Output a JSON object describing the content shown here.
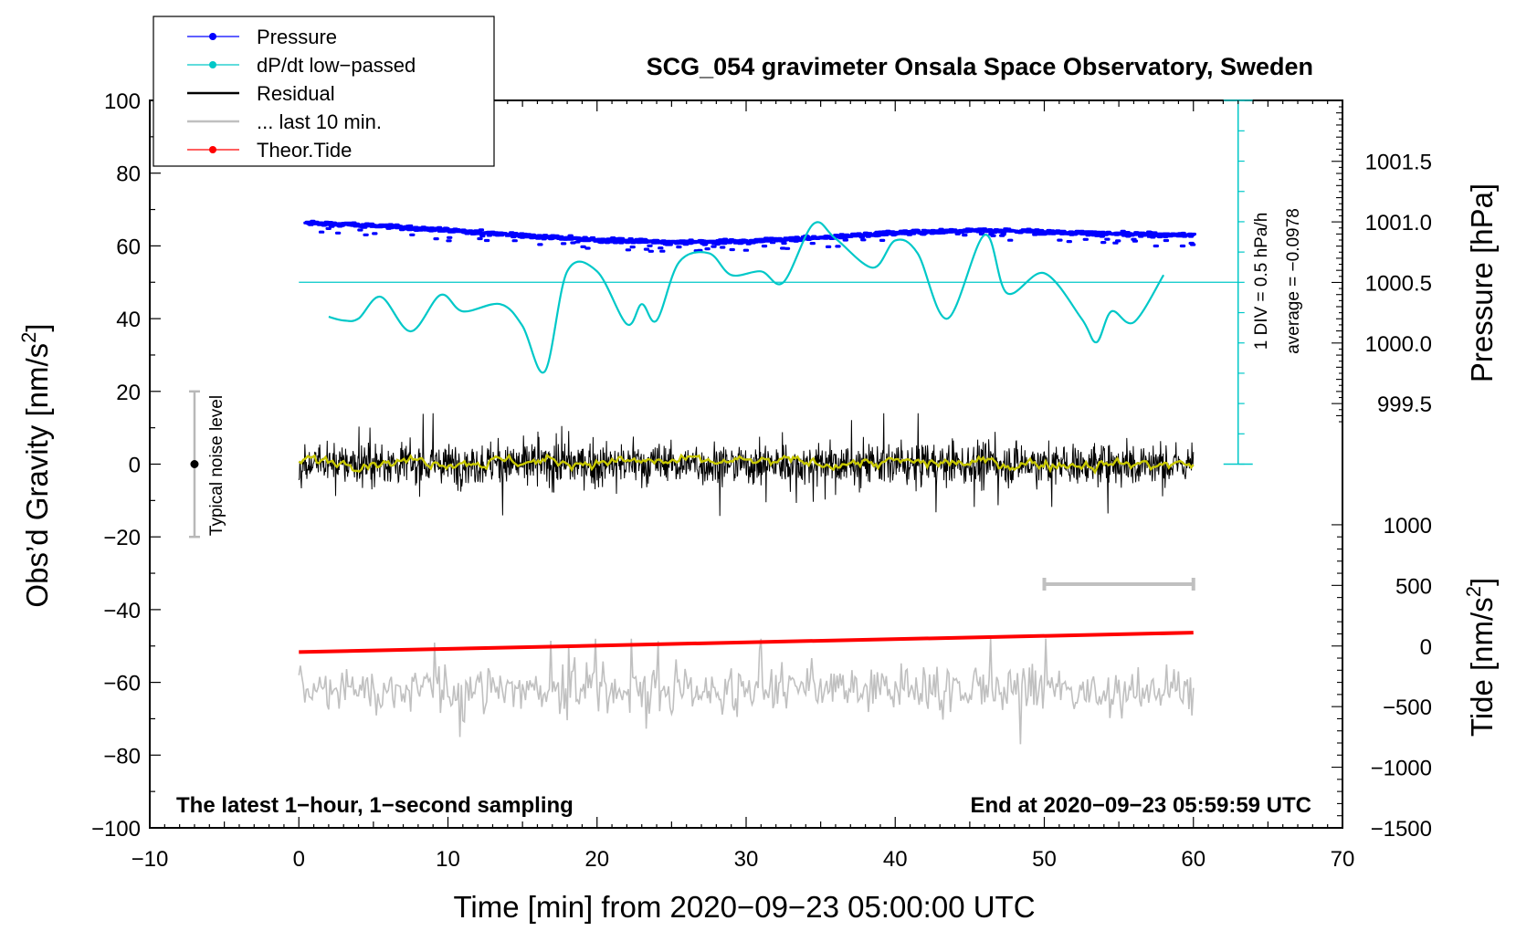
{
  "chart_data": {
    "type": "line",
    "title": "SCG_054 gravimeter Onsala Space Observatory, Sweden",
    "xlabel": "Time [min] from 2020−09−23 05:00:00 UTC",
    "ylabel_left_base": "Obs’d Gravity [nm/s",
    "ylabel_left_sup": "2",
    "ylabel_left_end": "]",
    "ylabel_pressure": "Pressure [hPa]",
    "ylabel_tide_base": "Tide [nm/s",
    "ylabel_tide_sup": "2",
    "ylabel_tide_end": "]",
    "xlim": [
      -10,
      70
    ],
    "ylim": [
      -100,
      100
    ],
    "x_ticks": [
      -10,
      0,
      10,
      20,
      30,
      40,
      50,
      60,
      70
    ],
    "x_tick_labels": [
      "−10",
      "0",
      "10",
      "20",
      "30",
      "40",
      "50",
      "60",
      "70"
    ],
    "y_ticks": [
      -100,
      -80,
      -60,
      -40,
      -20,
      0,
      20,
      40,
      60,
      80,
      100
    ],
    "y_tick_labels": [
      "−100",
      "−80",
      "−60",
      "−40",
      "−20",
      "0",
      "20",
      "40",
      "60",
      "80",
      "100"
    ],
    "pressure_axis": {
      "ticks": [
        999.5,
        1000.0,
        1000.5,
        1001.0,
        1001.5
      ],
      "tick_labels": [
        "999.5",
        "1000.0",
        "1000.5",
        "1001.0",
        "1001.5"
      ],
      "gravity_at_1000": 33.3,
      "gravity_per_hPa": 33.3
    },
    "tide_axis": {
      "ticks": [
        -1500,
        -1000,
        -500,
        0,
        500,
        1000
      ],
      "tick_labels": [
        "−1500",
        "−1000",
        "−500",
        "0",
        "500",
        "1000"
      ],
      "gravity_at_0": -50,
      "gravity_per_unit": 0.03333
    },
    "legend": {
      "position": "top-left",
      "entries": [
        {
          "label": "Pressure",
          "color": "#0000ff",
          "style": "line-dots"
        },
        {
          "label": "dP/dt low−passed",
          "color": "#00c8c8",
          "style": "line-dots"
        },
        {
          "label": "Residual",
          "color": "#000000",
          "style": "line"
        },
        {
          "label": "... last 10 min.",
          "color": "#c0c0c0",
          "style": "line"
        },
        {
          "label": "Theor.Tide",
          "color": "#ff0000",
          "style": "line-dots"
        }
      ]
    },
    "series": [
      {
        "name": "Pressure",
        "color": "#0000ff",
        "unit": "hPa",
        "x": [
          0.5,
          5,
          10,
          15,
          20,
          25,
          30,
          35,
          40,
          45,
          50,
          55,
          60
        ],
        "values": [
          1000.99,
          1000.97,
          1000.93,
          1000.89,
          1000.85,
          1000.83,
          1000.84,
          1000.87,
          1000.91,
          1000.93,
          1000.92,
          1000.9,
          1000.89
        ]
      },
      {
        "name": "dP/dt low−passed",
        "color": "#00c8c8",
        "unit": "gravity-equivalent",
        "x": [
          2,
          3,
          4,
          5.5,
          7.5,
          9.5,
          11,
          13.5,
          15,
          16.5,
          18,
          20,
          22,
          23,
          24,
          25.5,
          27.5,
          29,
          31,
          32.5,
          34.5,
          36,
          38.5,
          40,
          41.5,
          43.5,
          46,
          47.5,
          50,
          52.5,
          53.5,
          54.5,
          56,
          58
        ],
        "values": [
          40.5,
          39.5,
          40,
          46,
          36.5,
          46.5,
          42,
          44,
          38,
          25.5,
          53,
          53,
          38.5,
          44,
          39.5,
          55.5,
          58,
          52,
          53,
          50,
          66,
          62,
          54,
          61.5,
          58,
          40,
          63,
          47,
          52.5,
          40,
          33.5,
          42,
          39,
          52
        ]
      },
      {
        "name": "dP/dt baseline",
        "color": "#00c8c8",
        "x": [
          0,
          63
        ],
        "values": [
          50,
          50
        ]
      },
      {
        "name": "Residual",
        "color": "#000000",
        "x": [
          0,
          60
        ],
        "values": [
          0,
          0
        ],
        "amplitude_range": [
          -15,
          14
        ]
      },
      {
        "name": "Residual smoothed",
        "color": "#c8c800",
        "x": [
          0,
          60
        ],
        "values": [
          1,
          0
        ]
      },
      {
        "name": "... last 10 min.",
        "color": "#c0c0c0",
        "x": [
          0,
          60
        ],
        "values": [
          -62,
          -62
        ],
        "amplitude_range": [
          -77,
          -48
        ]
      },
      {
        "name": "Theor.Tide",
        "color": "#ff0000",
        "unit": "nm/s2",
        "x": [
          0,
          60
        ],
        "values": [
          -50,
          110
        ]
      }
    ],
    "annotations": {
      "noise_label": "Typical noise level",
      "noise_range": [
        -20,
        20
      ],
      "noise_x": -7,
      "dpdt_scale_label": "1 DIV = 0.5 hPa/h",
      "dpdt_average_label": "average = −0.0978",
      "dpdt_scale_x": 63,
      "dpdt_scale_range": [
        0,
        100
      ],
      "window_bar_x": [
        50,
        60
      ],
      "window_bar_y": -33,
      "footer_left": "The latest 1−hour, 1−second sampling",
      "footer_right": "End at 2020−09−23 05:59:59 UTC"
    }
  }
}
